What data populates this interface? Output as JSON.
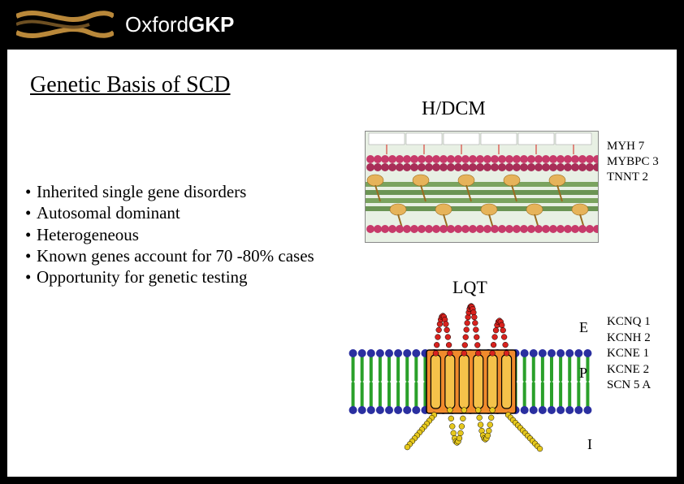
{
  "brand": {
    "part1": "Oxford",
    "part2": "GKP"
  },
  "title": "Genetic Basis of SCD",
  "bullets": [
    "Inherited single gene disorders",
    "Autosomal dominant",
    "Heterogeneous",
    "Known genes account for 70 -80% cases",
    "Opportunity for genetic testing"
  ],
  "hdcm": {
    "label": "H/DCM",
    "genes": [
      "MYH 7",
      "MYBPC 3",
      "TNNT 2"
    ],
    "figure": {
      "type": "protein-filament-diagram",
      "background": "#e8f0e4",
      "top_band_color": "#c73a6a",
      "mid_band_colors": [
        "#7aa35f",
        "#6b9454"
      ],
      "blob_color": "#e6b35a",
      "arrow_color": "#d9443c",
      "label_bg": "#ffffff"
    }
  },
  "lqt": {
    "label": "LQT",
    "genes": [
      "KCNQ 1",
      "KCNH 2",
      "KCNE 1",
      "KCNE 2",
      "SCN 5 A"
    ],
    "side_labels": {
      "E": "E",
      "P": "P",
      "I": "I"
    },
    "figure": {
      "type": "ion-channel-membrane",
      "lipid_head_color": "#2a2fa0",
      "lipid_tail_color": "#2aa02a",
      "channel_body_color": "#f08a2c",
      "seg_fill": "#f5c24a",
      "loop_ext_color": "#d8221e",
      "loop_int_color": "#e6c81e",
      "head_radius": 5,
      "tail_len": 30,
      "segments": 6
    }
  }
}
